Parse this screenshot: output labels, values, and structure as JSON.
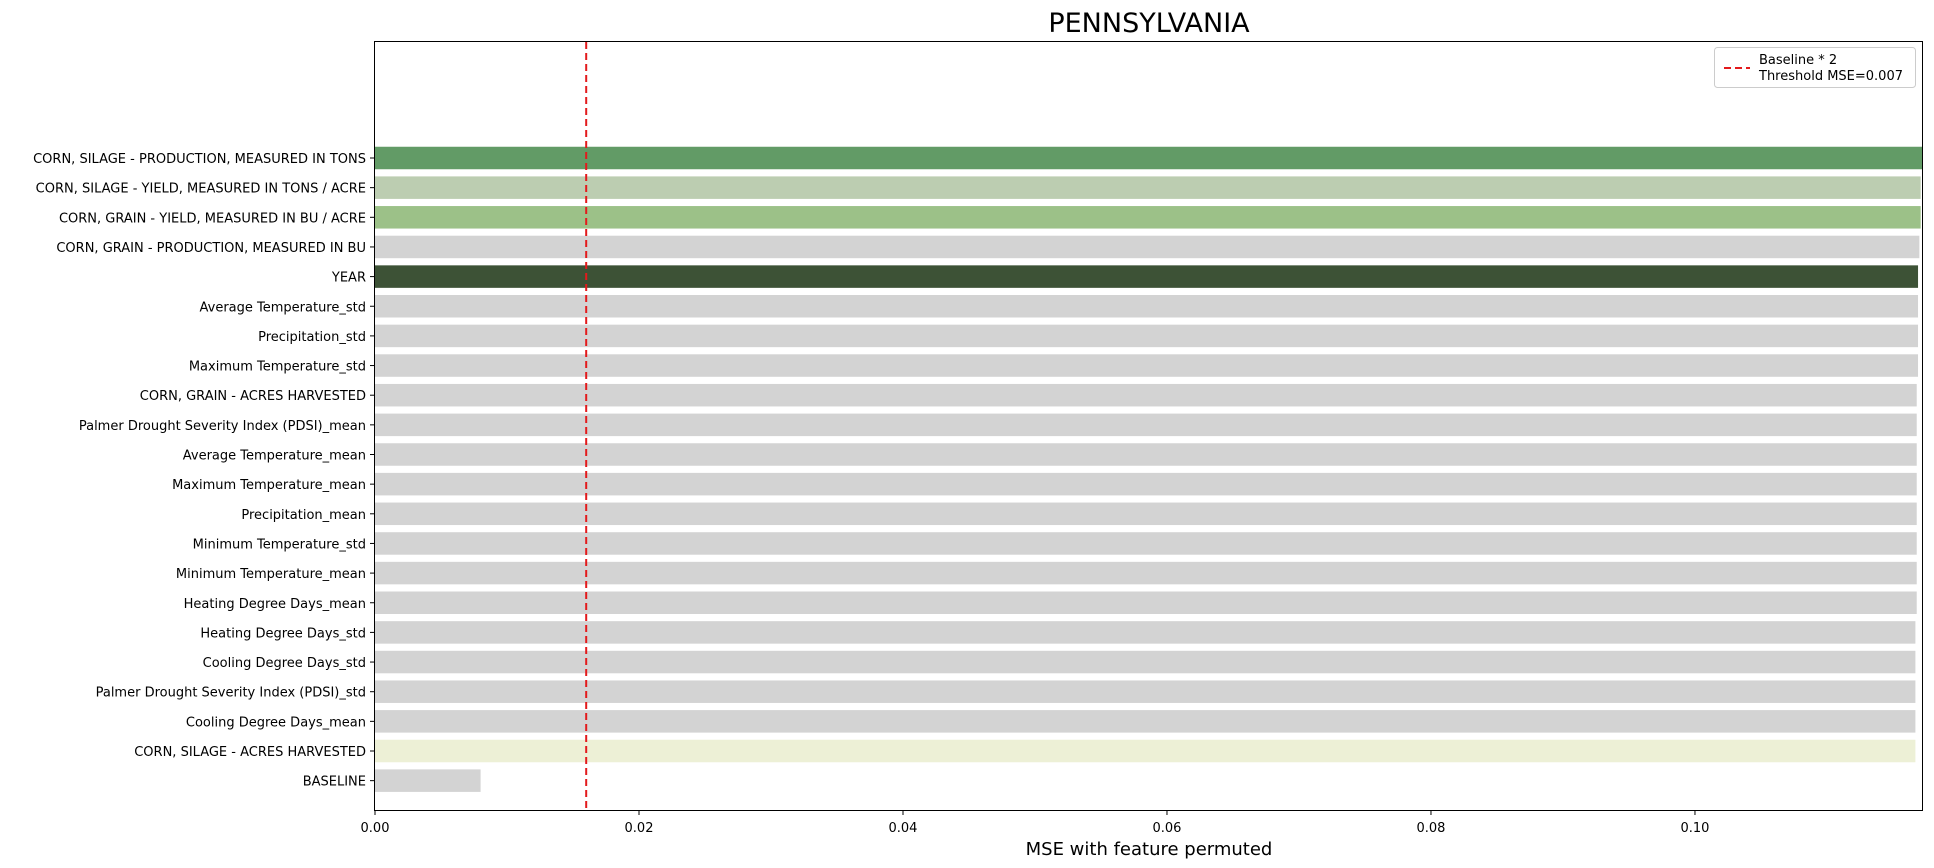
{
  "chart_data": {
    "type": "bar",
    "orientation": "horizontal",
    "title": "PENNSYLVANIA",
    "xlabel": "MSE with feature permuted",
    "ylabel": "",
    "xlim": [
      0,
      0.1172
    ],
    "xticks": [
      "0.00",
      "0.02",
      "0.04",
      "0.06",
      "0.08",
      "0.10"
    ],
    "xtick_values": [
      0,
      0.02,
      0.04,
      0.06,
      0.08,
      0.1
    ],
    "grid": false,
    "legend_position": "top-right",
    "legend_entries": [
      "Baseline * 2",
      "Threshold MSE=0.007"
    ],
    "threshold": {
      "value": 0.016,
      "color": "#e31a1c",
      "style": "dashed"
    },
    "categories": [
      "CORN, SILAGE - PRODUCTION, MEASURED IN TONS",
      "CORN, SILAGE - YIELD, MEASURED IN TONS / ACRE",
      "CORN, GRAIN - YIELD, MEASURED IN BU / ACRE",
      "CORN, GRAIN - PRODUCTION, MEASURED IN BU",
      "YEAR",
      "Average Temperature_std",
      "Precipitation_std",
      "Maximum Temperature_std",
      "CORN, GRAIN - ACRES HARVESTED",
      "Palmer Drought Severity Index (PDSI)_mean",
      "Average Temperature_mean",
      "Maximum Temperature_mean",
      "Precipitation_mean",
      "Minimum Temperature_std",
      "Minimum Temperature_mean",
      "Heating Degree Days_mean",
      "Heating Degree Days_std",
      "Cooling Degree Days_std",
      "Palmer Drought Severity Index (PDSI)_std",
      "Cooling Degree Days_mean",
      "CORN, SILAGE - ACRES HARVESTED",
      "BASELINE"
    ],
    "values": [
      0.1172,
      0.1171,
      0.1171,
      0.117,
      0.1169,
      0.1169,
      0.1169,
      0.1169,
      0.1168,
      0.1168,
      0.1168,
      0.1168,
      0.1168,
      0.1168,
      0.1168,
      0.1168,
      0.1167,
      0.1167,
      0.1167,
      0.1167,
      0.1167,
      0.008
    ],
    "colors": [
      "#629b66",
      "#bccdb1",
      "#9cc188",
      "#d3d3d3",
      "#3d5236",
      "#d3d3d3",
      "#d3d3d3",
      "#d3d3d3",
      "#d3d3d3",
      "#d3d3d3",
      "#d3d3d3",
      "#d3d3d3",
      "#d3d3d3",
      "#d3d3d3",
      "#d3d3d3",
      "#d3d3d3",
      "#d3d3d3",
      "#d3d3d3",
      "#d3d3d3",
      "#d3d3d3",
      "#edf0d6",
      "#d3d3d3"
    ]
  }
}
